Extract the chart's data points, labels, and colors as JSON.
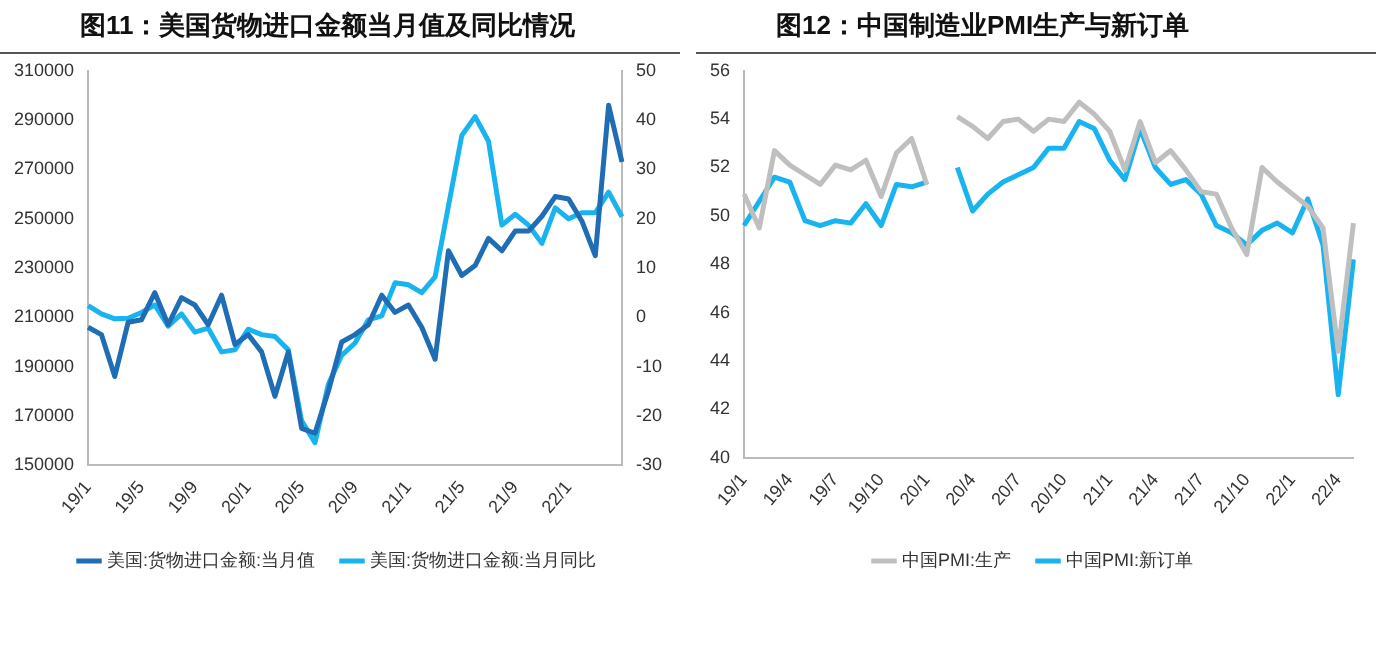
{
  "chart_data": [
    {
      "type": "line",
      "title": "图11：美国货物进口金额当月值及同比情况",
      "categories": [
        "19/1",
        null,
        null,
        null,
        "19/5",
        null,
        null,
        null,
        "19/9",
        null,
        null,
        null,
        "20/1",
        null,
        null,
        null,
        "20/5",
        null,
        null,
        null,
        "20/9",
        null,
        null,
        null,
        "21/1",
        null,
        null,
        null,
        "21/5",
        null,
        null,
        null,
        "21/9",
        null,
        null,
        null,
        "22/1",
        null,
        null,
        null,
        null
      ],
      "series": [
        {
          "name": "美国:货物进口金额:当月值",
          "color": "#1f6db5",
          "values": [
            206000,
            203000,
            186000,
            208000,
            209000,
            220000,
            207000,
            218000,
            215000,
            207000,
            219000,
            199000,
            203000,
            196000,
            178000,
            196000,
            165000,
            163000,
            180000,
            200000,
            203000,
            207000,
            219000,
            212000,
            215000,
            206000,
            193000,
            237000,
            227000,
            231000,
            242000,
            237000,
            245000,
            245000,
            251000,
            259000,
            258000,
            249000,
            235000,
            296000,
            273000
          ]
        },
        {
          "name": "美国:货物进口金额:当月同比",
          "color": "#19b4ef",
          "axis": "y2",
          "values": [
            2.4,
            0.7,
            -0.3,
            -0.2,
            1,
            2.5,
            -1.8,
            0.7,
            -3,
            -2.2,
            -7,
            -6.6,
            -2.4,
            -3.5,
            -3.9,
            -6.6,
            -21,
            -25.4,
            -13.6,
            -7.7,
            -5.2,
            -0.5,
            0.3,
            7,
            6.6,
            5,
            8.2,
            22.6,
            36.9,
            40.7,
            35.7,
            18.7,
            20.9,
            18.7,
            15,
            22.2,
            20,
            21.2,
            21.2,
            25.4,
            20.4
          ]
        }
      ],
      "ylim": [
        150000,
        310000
      ],
      "yticks": [
        150000,
        170000,
        190000,
        210000,
        230000,
        250000,
        270000,
        290000,
        310000
      ],
      "y2lim": [
        -30,
        50
      ],
      "y2ticks": [
        -30,
        -20,
        -10,
        0,
        10,
        20,
        30,
        40,
        50
      ],
      "grid": false,
      "legend": "bottom",
      "marker": "none"
    },
    {
      "type": "line",
      "title": "图12：中国制造业PMI生产与新订单",
      "categories": [
        "19/1",
        null,
        null,
        "19/4",
        null,
        null,
        "19/7",
        null,
        null,
        "19/10",
        null,
        null,
        "20/1",
        null,
        null,
        "20/4",
        null,
        null,
        "20/7",
        null,
        null,
        "20/10",
        null,
        null,
        "21/1",
        null,
        null,
        "21/4",
        null,
        null,
        "21/7",
        null,
        null,
        "21/10",
        null,
        null,
        "22/1",
        null,
        null,
        "22/4",
        null
      ],
      "series": [
        {
          "name": "中国PMI:生产",
          "color": "#bfbfbf",
          "values": [
            50.9,
            49.5,
            52.7,
            52.1,
            51.7,
            51.3,
            52.1,
            51.9,
            52.3,
            50.8,
            52.6,
            53.2,
            51.3,
            null,
            54.1,
            53.7,
            53.2,
            53.9,
            54.0,
            53.5,
            54.0,
            53.9,
            54.7,
            54.2,
            53.5,
            51.9,
            53.9,
            52.2,
            52.7,
            51.9,
            51.0,
            50.9,
            49.5,
            48.4,
            52.0,
            51.4,
            50.9,
            50.4,
            49.5,
            44.4,
            49.7
          ]
        },
        {
          "name": "中国PMI:新订单",
          "color": "#19b4ef",
          "values": [
            49.6,
            50.6,
            51.6,
            51.4,
            49.8,
            49.6,
            49.8,
            49.7,
            50.5,
            49.6,
            51.3,
            51.2,
            51.4,
            null,
            52.0,
            50.2,
            50.9,
            51.4,
            51.7,
            52.0,
            52.8,
            52.8,
            53.9,
            53.6,
            52.3,
            51.5,
            53.6,
            52.0,
            51.3,
            51.5,
            50.9,
            49.6,
            49.3,
            48.8,
            49.4,
            49.7,
            49.3,
            50.7,
            48.8,
            42.6,
            48.2
          ]
        }
      ],
      "ylim": [
        40,
        56
      ],
      "yticks": [
        40,
        42,
        44,
        46,
        48,
        50,
        52,
        54,
        56
      ],
      "grid": false,
      "legend": "bottom",
      "marker": "none"
    }
  ]
}
